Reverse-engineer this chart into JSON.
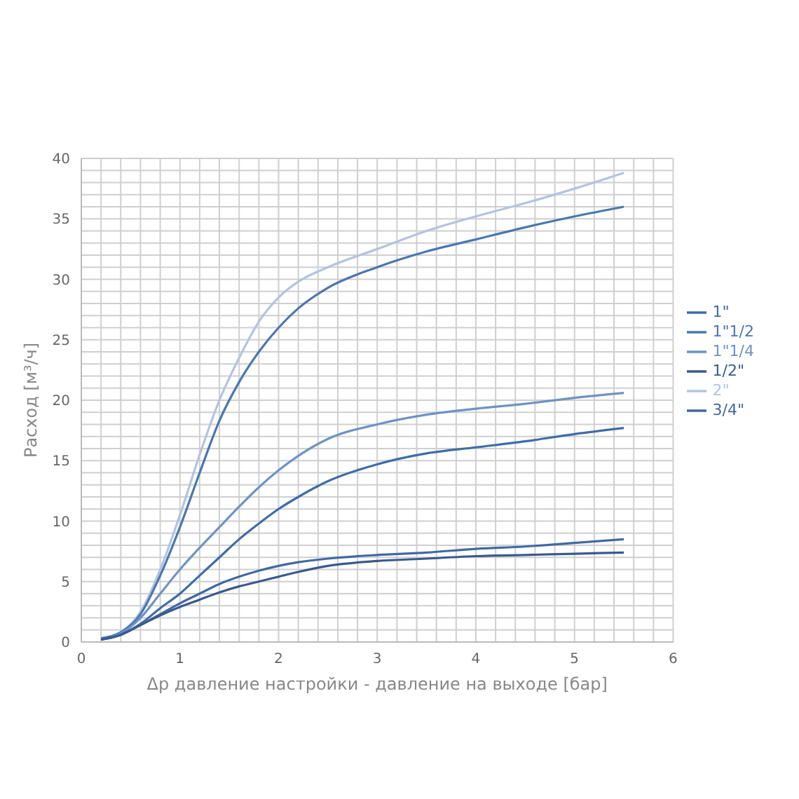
{
  "chart_data": {
    "type": "line",
    "xlabel": "Δp давление настройки - давление на выходе [бар]",
    "ylabel": "Расход [м³/ч]",
    "x": [
      0.2,
      0.4,
      0.6,
      0.8,
      1.0,
      1.2,
      1.4,
      1.6,
      1.8,
      2.0,
      2.2,
      2.5,
      3.0,
      3.5,
      4.0,
      4.5,
      5.0,
      5.5
    ],
    "series": [
      {
        "name": "2\"",
        "color": "#b4c3df",
        "values": [
          0.3,
          0.8,
          2.5,
          6,
          10.5,
          15.5,
          20,
          23.5,
          26.5,
          28.5,
          29.8,
          31,
          32.5,
          34,
          35.2,
          36.3,
          37.5,
          38.8
        ]
      },
      {
        "name": "1\"1/2",
        "color": "#4a77b0",
        "values": [
          0.3,
          0.8,
          2.3,
          5.5,
          9.5,
          14,
          18.3,
          21.5,
          24,
          26,
          27.6,
          29.3,
          31,
          32.3,
          33.3,
          34.3,
          35.2,
          36
        ]
      },
      {
        "name": "1\"1/4",
        "color": "#6f93c4",
        "values": [
          0.2,
          0.7,
          2,
          4,
          6,
          7.8,
          9.5,
          11.2,
          12.8,
          14.2,
          15.4,
          16.8,
          18,
          18.8,
          19.3,
          19.7,
          20.2,
          20.6
        ]
      },
      {
        "name": "1\"",
        "color": "#3f6ca7",
        "values": [
          0.2,
          0.6,
          1.5,
          2.8,
          4,
          5.5,
          7,
          8.5,
          9.8,
          11,
          12,
          13.3,
          14.7,
          15.6,
          16.1,
          16.6,
          17.2,
          17.7
        ]
      },
      {
        "name": "3/4\"",
        "color": "#4169a3",
        "values": [
          0.2,
          0.6,
          1.4,
          2.3,
          3.2,
          4,
          4.8,
          5.4,
          5.9,
          6.3,
          6.6,
          6.9,
          7.2,
          7.4,
          7.7,
          7.9,
          8.2,
          8.5
        ]
      },
      {
        "name": "1/2\"",
        "color": "#3a5a8e",
        "values": [
          0.2,
          0.6,
          1.4,
          2.2,
          2.9,
          3.5,
          4.1,
          4.6,
          5,
          5.4,
          5.8,
          6.3,
          6.7,
          6.9,
          7.1,
          7.2,
          7.3,
          7.4
        ]
      }
    ],
    "xlim": [
      0,
      6
    ],
    "ylim": [
      0,
      40
    ],
    "xticks": [
      0,
      {
        "value": 0.2,
        "label": null
      },
      {
        "value": 0.4,
        "label": null
      },
      {
        "value": 0.6,
        "label": null
      },
      {
        "value": 0.8,
        "label": null
      },
      1,
      {
        "value": 1.2,
        "label": null
      },
      {
        "value": 1.4,
        "label": null
      },
      {
        "value": 1.6,
        "label": null
      },
      {
        "value": 1.8,
        "label": null
      },
      2,
      {
        "value": 2.2,
        "label": null
      },
      {
        "value": 2.4,
        "label": null
      },
      {
        "value": 2.6,
        "label": null
      },
      {
        "value": 2.8,
        "label": null
      },
      3,
      {
        "value": 3.2,
        "label": null
      },
      {
        "value": 3.4,
        "label": null
      },
      {
        "value": 3.6,
        "label": null
      },
      {
        "value": 3.8,
        "label": null
      },
      4,
      {
        "value": 4.2,
        "label": null
      },
      {
        "value": 4.4,
        "label": null
      },
      {
        "value": 4.6,
        "label": null
      },
      {
        "value": 4.8,
        "label": null
      },
      5,
      {
        "value": 5.2,
        "label": null
      },
      {
        "value": 5.4,
        "label": null
      },
      {
        "value": 5.6,
        "label": null
      },
      {
        "value": 5.8,
        "label": null
      },
      6
    ],
    "yticks": [
      0,
      {
        "value": 1,
        "label": null
      },
      {
        "value": 2,
        "label": null
      },
      {
        "value": 3,
        "label": null
      },
      {
        "value": 4,
        "label": null
      },
      5,
      {
        "value": 6,
        "label": null
      },
      {
        "value": 7,
        "label": null
      },
      {
        "value": 8,
        "label": null
      },
      {
        "value": 9,
        "label": null
      },
      10,
      {
        "value": 11,
        "label": null
      },
      {
        "value": 12,
        "label": null
      },
      {
        "value": 13,
        "label": null
      },
      {
        "value": 14,
        "label": null
      },
      15,
      {
        "value": 16,
        "label": null
      },
      {
        "value": 17,
        "label": null
      },
      {
        "value": 18,
        "label": null
      },
      {
        "value": 19,
        "label": null
      },
      20,
      {
        "value": 21,
        "label": null
      },
      {
        "value": 22,
        "label": null
      },
      {
        "value": 23,
        "label": null
      },
      {
        "value": 24,
        "label": null
      },
      25,
      {
        "value": 26,
        "label": null
      },
      {
        "value": 27,
        "label": null
      },
      {
        "value": 28,
        "label": null
      },
      {
        "value": 29,
        "label": null
      },
      30,
      {
        "value": 31,
        "label": null
      },
      {
        "value": 32,
        "label": null
      },
      {
        "value": 33,
        "label": null
      },
      {
        "value": 34,
        "label": null
      },
      35,
      {
        "value": 36,
        "label": null
      },
      {
        "value": 37,
        "label": null
      },
      {
        "value": 38,
        "label": null
      },
      {
        "value": 39,
        "label": null
      },
      40
    ],
    "grid": true,
    "legend": "right",
    "marker": "none",
    "line_style": "solid"
  }
}
